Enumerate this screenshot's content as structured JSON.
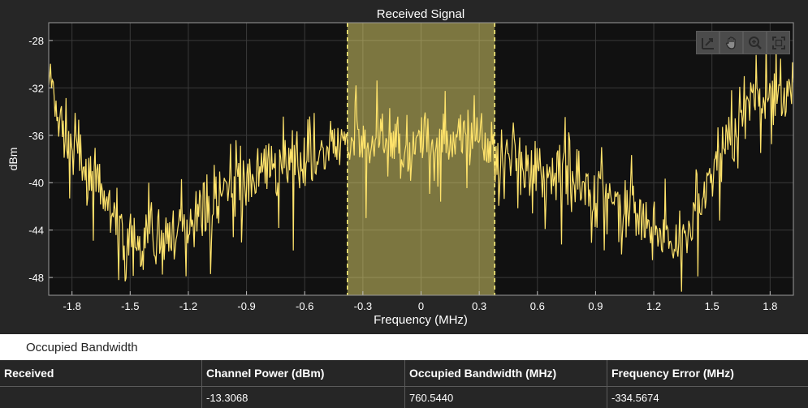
{
  "chart_data": {
    "type": "line",
    "title": "Received Signal",
    "xlabel": "Frequency (MHz)",
    "ylabel": "dBm",
    "xlim": [
      -1.92,
      1.92
    ],
    "ylim": [
      -49.5,
      -26.5
    ],
    "xticks": [
      -1.8,
      -1.5,
      -1.2,
      -0.9,
      -0.6,
      -0.3,
      0,
      0.3,
      0.6,
      0.9,
      1.2,
      1.5,
      1.8
    ],
    "yticks": [
      -48,
      -44,
      -40,
      -36,
      -32,
      -28
    ],
    "grid": true,
    "line_color": "#ffe36b",
    "band_color": "#fff27a",
    "occupied_band": [
      -0.38,
      0.38
    ],
    "series": [
      {
        "x": [
          -1.92,
          -1.86,
          -1.8,
          -1.74,
          -1.68,
          -1.62,
          -1.56,
          -1.5,
          -1.44,
          -1.38,
          -1.32,
          -1.26,
          -1.2,
          -1.14,
          -1.08,
          -1.02,
          -0.96,
          -0.9,
          -0.84,
          -0.78,
          -0.72,
          -0.66,
          -0.6,
          -0.54,
          -0.48,
          -0.42,
          -0.38,
          -0.3,
          -0.2,
          -0.1,
          0,
          0.1,
          0.2,
          0.3,
          0.38,
          0.42,
          0.48,
          0.54,
          0.6,
          0.66,
          0.72,
          0.78,
          0.84,
          0.9,
          0.96,
          1.02,
          1.08,
          1.14,
          1.2,
          1.26,
          1.32,
          1.38,
          1.44,
          1.5,
          1.56,
          1.62,
          1.68,
          1.74,
          1.8,
          1.86,
          1.92
        ],
        "values": [
          -31,
          -35,
          -37,
          -38,
          -40,
          -42,
          -44,
          -45,
          -45.5,
          -45,
          -44.5,
          -44,
          -43.5,
          -42.5,
          -41.5,
          -41,
          -40.5,
          -40,
          -39.5,
          -39,
          -38.5,
          -38.5,
          -38,
          -37.5,
          -37,
          -37,
          -36.5,
          -36.5,
          -36.5,
          -36.5,
          -36.5,
          -36.5,
          -36.5,
          -36.5,
          -37,
          -37.5,
          -38,
          -38.5,
          -38.5,
          -39,
          -39,
          -39.5,
          -40,
          -40.5,
          -41,
          -41.5,
          -42,
          -43,
          -44,
          -45,
          -45,
          -44,
          -42,
          -39,
          -37,
          -35,
          -34,
          -33,
          -32.5,
          -32,
          -32
        ]
      }
    ]
  },
  "toolbar": {
    "buttons": [
      {
        "name": "restore-view-icon"
      },
      {
        "name": "pan-hand-icon"
      },
      {
        "name": "zoom-in-icon"
      },
      {
        "name": "fullscreen-icon"
      }
    ]
  },
  "section": {
    "title": "Occupied Bandwidth"
  },
  "table": {
    "headers": [
      "Received",
      "Channel Power (dBm)",
      "Occupied Bandwidth (MHz)",
      "Frequency Error (MHz)"
    ],
    "row": [
      "",
      "-13.3068",
      "760.5440",
      "-334.5674"
    ]
  }
}
